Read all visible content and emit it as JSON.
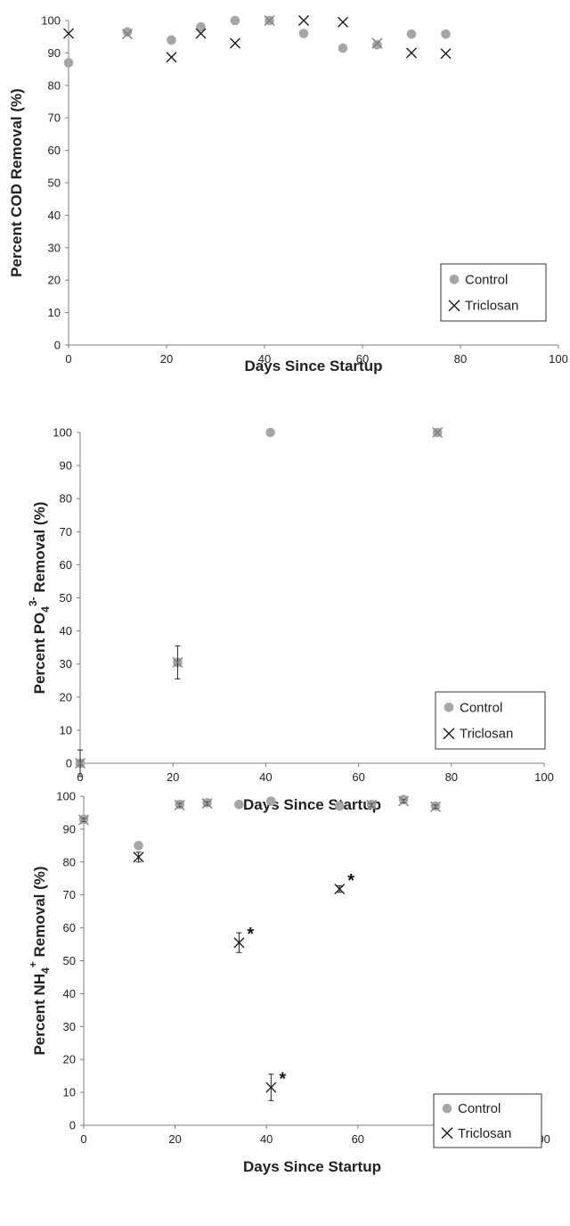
{
  "figure": {
    "background": "#ffffff",
    "axis_color": "#7f7f7f"
  },
  "styles": {
    "control_color": "#a6a6a6",
    "control_marker": "filled-circle",
    "triclosan_color": "#1a1a1a",
    "triclosan_marker": "x-cross",
    "triclosan_overlay_color": "#7f7f7f"
  },
  "chart_data": [
    {
      "type": "scatter",
      "title": "",
      "xlabel": "Days Since Startup",
      "ylabel": "Percent COD Removal (%)",
      "xlim": [
        0,
        100
      ],
      "ylim": [
        0,
        100
      ],
      "xticks": [
        "0",
        "20",
        "40",
        "60",
        "80",
        "100"
      ],
      "yticks": [
        "0",
        "10",
        "20",
        "30",
        "40",
        "50",
        "60",
        "70",
        "80",
        "90",
        "100"
      ],
      "grid": false,
      "legend_position": "bottom-right",
      "series": [
        {
          "name": "Control",
          "points": [
            [
              0,
              87
            ],
            [
              12,
              96.5
            ],
            [
              21,
              94
            ],
            [
              27,
              98
            ],
            [
              34,
              100
            ],
            [
              41,
              100
            ],
            [
              48,
              96
            ],
            [
              56,
              91.5
            ],
            [
              63,
              92.5
            ],
            [
              70,
              95.8
            ],
            [
              77,
              95.8
            ]
          ]
        },
        {
          "name": "Triclosan",
          "points": [
            [
              0,
              96
            ],
            [
              12,
              95.8
            ],
            [
              21,
              88.7
            ],
            [
              27,
              96
            ],
            [
              34,
              93
            ],
            [
              41,
              100
            ],
            [
              48,
              100
            ],
            [
              56,
              99.5
            ],
            [
              63,
              93
            ],
            [
              70,
              90
            ],
            [
              77,
              89.8
            ]
          ]
        }
      ],
      "annotations": []
    },
    {
      "type": "scatter",
      "title": "",
      "xlabel": "Days Since Startup",
      "ylabel_parts": {
        "before": "Percent PO",
        "sub": "4",
        "sup": "3-",
        "after": " Removal (%)"
      },
      "xlim": [
        0,
        100
      ],
      "ylim": [
        0,
        100
      ],
      "xticks": [
        "0",
        "20",
        "40",
        "60",
        "80",
        "100"
      ],
      "yticks": [
        "0",
        "10",
        "20",
        "30",
        "40",
        "50",
        "60",
        "70",
        "80",
        "90",
        "100"
      ],
      "grid": false,
      "legend_position": "bottom-right",
      "series": [
        {
          "name": "Control",
          "points": [
            [
              0,
              0
            ],
            [
              21,
              30.5
            ],
            [
              41,
              100
            ],
            [
              77,
              100
            ]
          ]
        },
        {
          "name": "Triclosan",
          "points": [
            [
              0,
              0
            ],
            [
              21,
              30.5
            ],
            [
              77,
              100
            ]
          ],
          "error": [
            4,
            5,
            0
          ]
        }
      ],
      "annotations": []
    },
    {
      "type": "scatter",
      "title": "",
      "xlabel": "Days Since Startup",
      "ylabel_parts": {
        "before": "Percent NH",
        "sub": "4",
        "sup": "+",
        "after": " Removal (%)"
      },
      "xlim": [
        0,
        100
      ],
      "ylim": [
        0,
        100
      ],
      "xticks": [
        "0",
        "20",
        "40",
        "60",
        "80",
        "100"
      ],
      "yticks": [
        "0",
        "10",
        "20",
        "30",
        "40",
        "50",
        "60",
        "70",
        "80",
        "90",
        "100"
      ],
      "grid": false,
      "legend_position": "bottom-right",
      "series": [
        {
          "name": "Control",
          "points": [
            [
              0,
              93
            ],
            [
              12,
              85
            ],
            [
              21,
              97.5
            ],
            [
              27,
              98
            ],
            [
              34,
              97.5
            ],
            [
              41,
              98.5
            ],
            [
              56,
              97
            ],
            [
              63,
              97.5
            ],
            [
              70,
              99
            ],
            [
              77,
              97
            ]
          ]
        },
        {
          "name": "Triclosan",
          "points": [
            [
              0,
              92.8
            ],
            [
              12,
              81.5
            ],
            [
              21,
              97.3
            ],
            [
              27,
              97.8
            ],
            [
              34,
              55.5
            ],
            [
              41,
              11.5
            ],
            [
              56,
              71.8
            ],
            [
              63,
              97.3
            ],
            [
              70,
              98.5
            ],
            [
              77,
              96.8
            ]
          ],
          "error": [
            0.5,
            1.5,
            0.5,
            0.5,
            3,
            4,
            1,
            0.5,
            0.5,
            0.5
          ]
        }
      ],
      "annotations": [
        {
          "text": "*",
          "x": 34,
          "y": 55.5
        },
        {
          "text": "*",
          "x": 41,
          "y": 11.5
        },
        {
          "text": "*",
          "x": 56,
          "y": 71.8
        }
      ]
    }
  ]
}
